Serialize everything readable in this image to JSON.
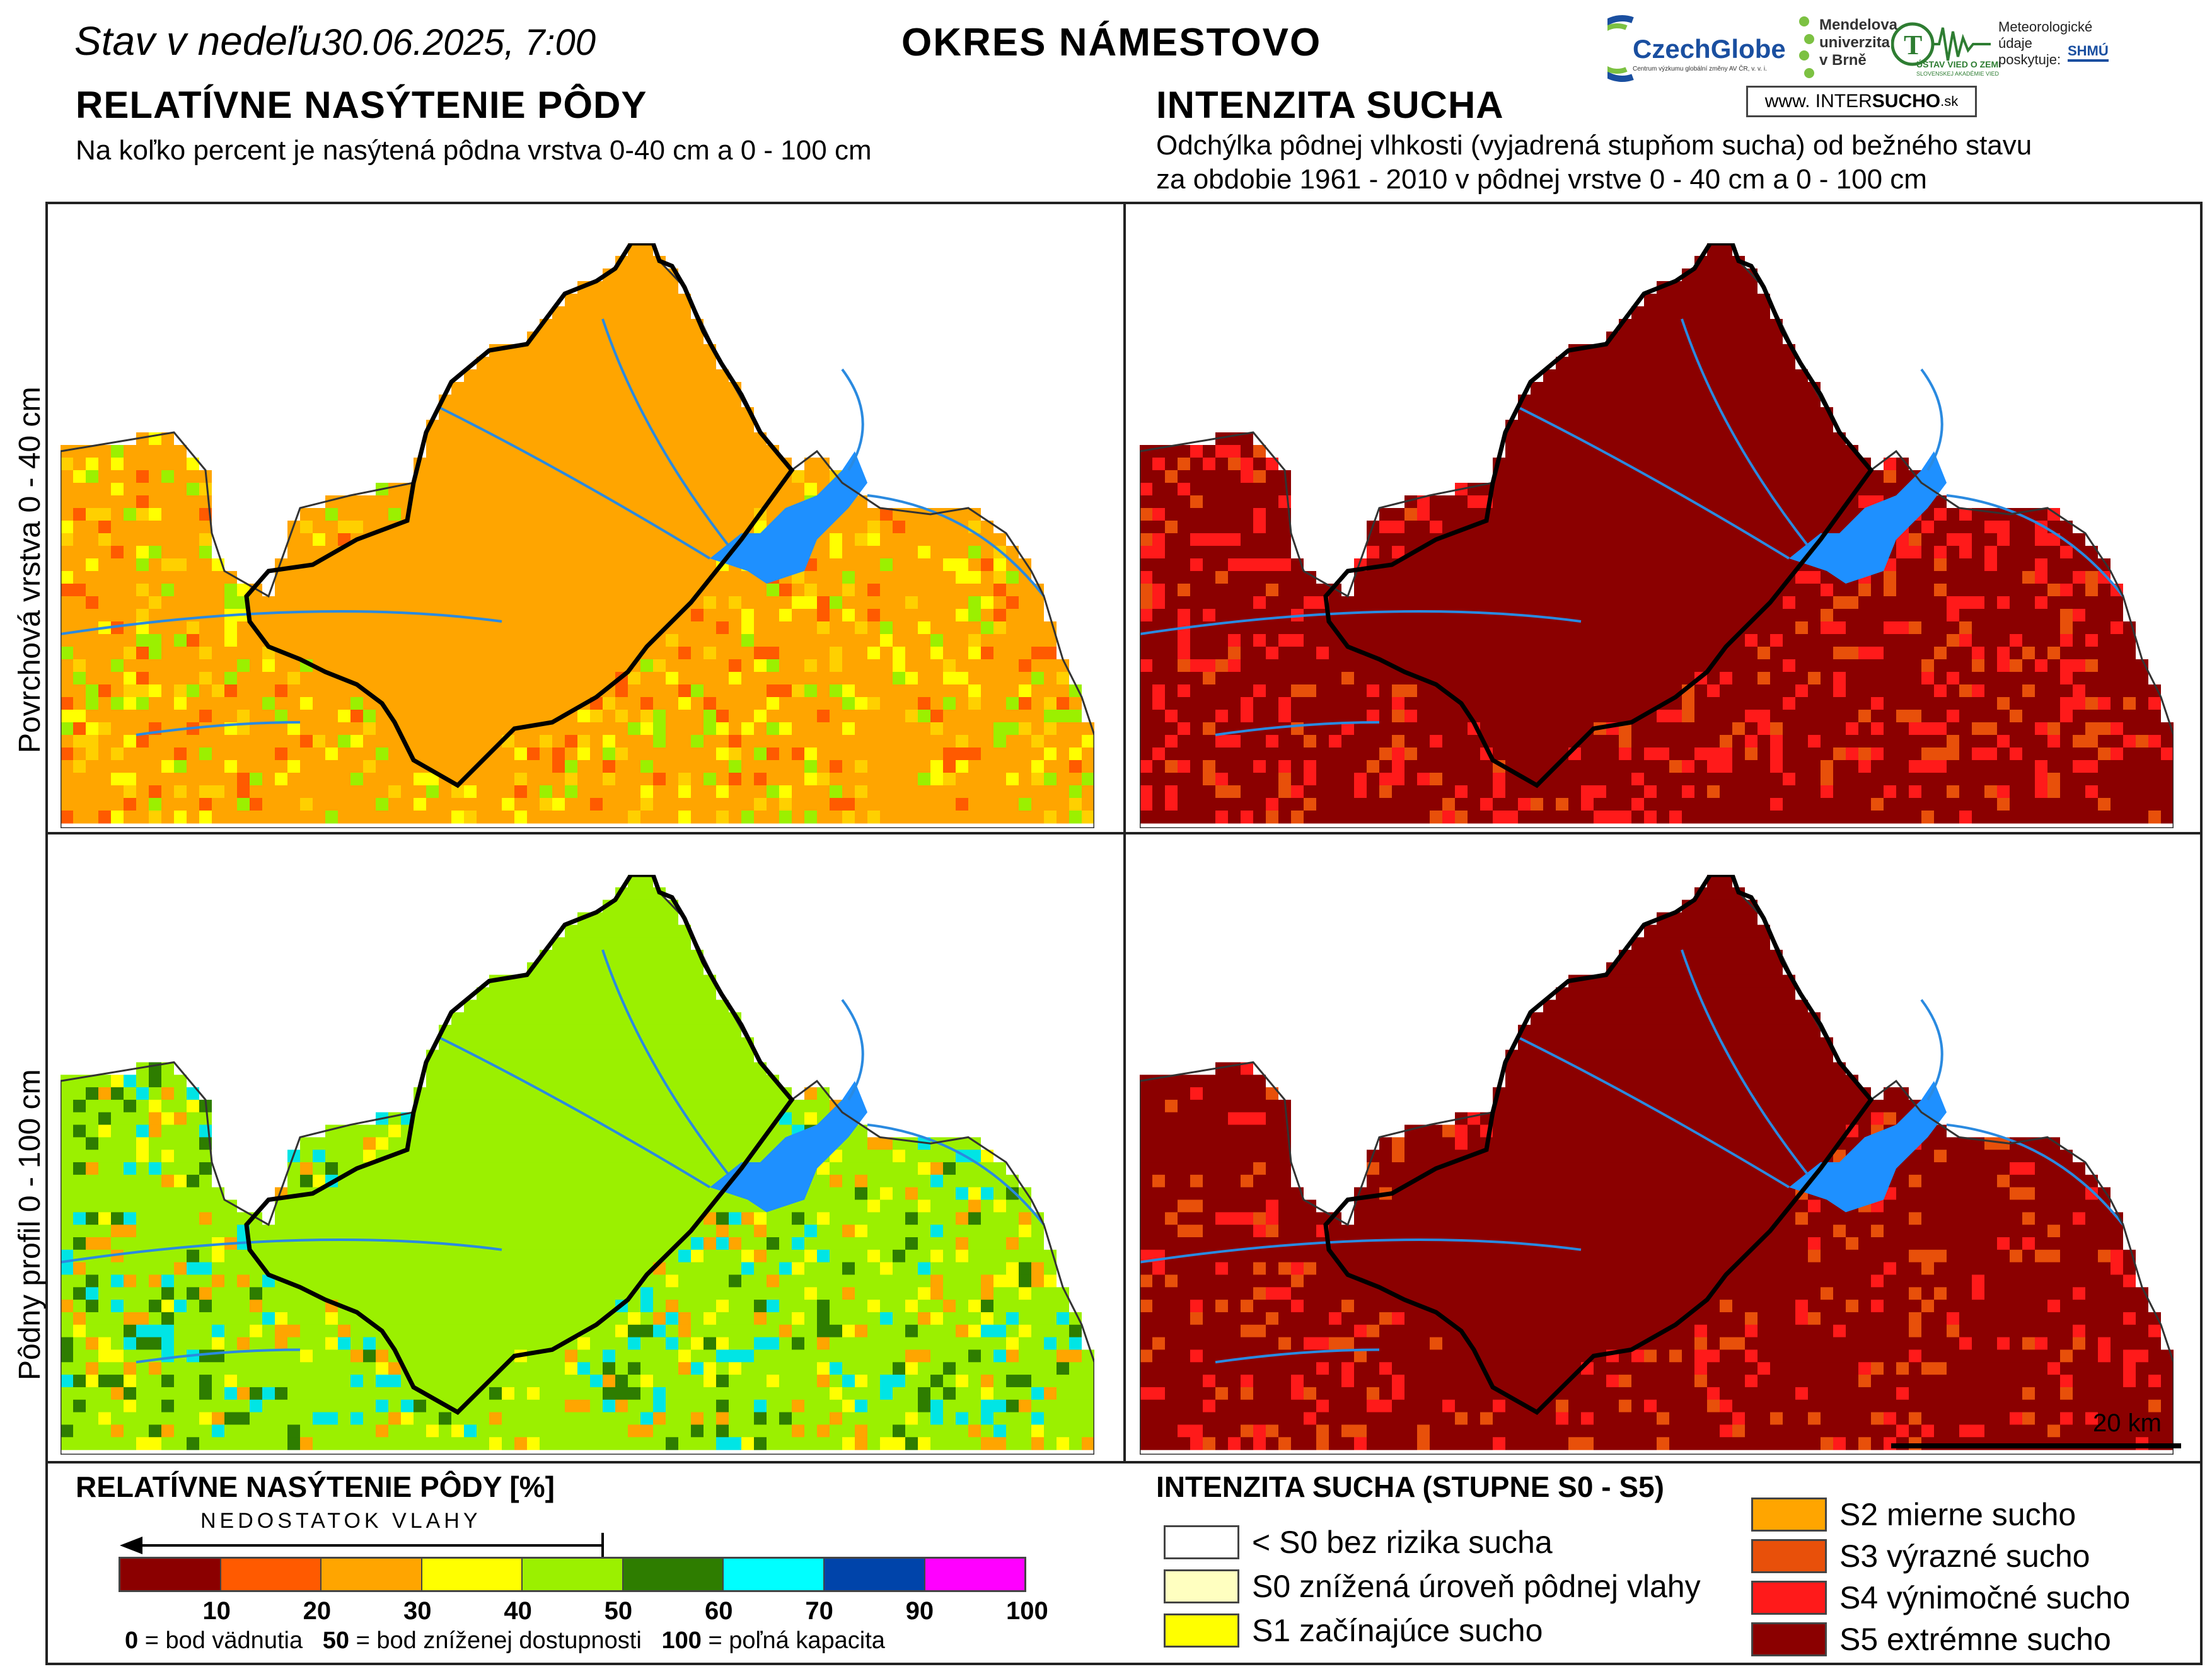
{
  "header": {
    "date_prefix": "Stav v nedeľu",
    "date": "30.06.2025, 7:00",
    "district": "OKRES NÁMESTOVO"
  },
  "logos": {
    "czechglobe": "CzechGlobe",
    "czechglobe_sub": "Centrum výzkumu globální změny AV ČR, v. v. i.",
    "mendel_l1": "Mendelova",
    "mendel_l2": "univerzita",
    "mendel_l3": "v Brně",
    "usvz": "ÚSTAV VIED O ZEMI",
    "usvz_sub": "SLOVENSKEJ AKADÉMIE VIED",
    "meteo_l1": "Meteorologické",
    "meteo_l2": "údaje",
    "meteo_l3": "poskytuje:",
    "shmu": "SHMÚ",
    "intersucho_www": "www.",
    "intersucho_a": "INTER",
    "intersucho_b": "SUCHO",
    "intersucho_sk": ".sk"
  },
  "left_section": {
    "title": "RELATÍVNE NASÝTENIE PÔDY",
    "subtitle": "Na koľko percent je nasýtená pôdna vrstva 0-40 cm a 0 - 100 cm"
  },
  "right_section": {
    "title": "INTENZITA SUCHA",
    "subtitle_l1": "Odchýlka pôdnej vlhkosti (vyjadrená stupňom sucha) od bežného stavu",
    "subtitle_l2": "za obdobie 1961 - 2010 v pôdnej vrstve 0 - 40 cm a 0 - 100 cm"
  },
  "row_labels": {
    "top": "Povrchová vrstva 0 - 40 cm",
    "bottom": "Pôdny profil 0 - 100 cm"
  },
  "scale_bar": {
    "label": "20 km"
  },
  "legend_left": {
    "title": "RELATÍVNE NASÝTENIE PÔDY [%]",
    "arrow_label": "NEDOSTATOK VLAHY",
    "bins": [
      {
        "color": "#8b0000"
      },
      {
        "color": "#ff5a00"
      },
      {
        "color": "#ffa500"
      },
      {
        "color": "#ffff00"
      },
      {
        "color": "#9bf000"
      },
      {
        "color": "#2e7d00"
      },
      {
        "color": "#00ffff"
      },
      {
        "color": "#0044aa"
      },
      {
        "color": "#ff00ff"
      }
    ],
    "ticks": [
      "10",
      "20",
      "30",
      "40",
      "50",
      "60",
      "70",
      "90",
      "100"
    ],
    "note_0": "0",
    "note_0_text": "= bod vädnutia",
    "note_50": "50",
    "note_50_text": "= bod zníženej dostupnosti",
    "note_100": "100",
    "note_100_text": "= poľná kapacita"
  },
  "legend_right": {
    "title": "INTENZITA SUCHA (STUPNE S0 - S5)",
    "items": [
      {
        "label": "< S0 bez rizika sucha",
        "color": "#ffffff"
      },
      {
        "label": "S0 znížená úroveň pôdnej vlahy",
        "color": "#ffffc0"
      },
      {
        "label": "S1 začínajúce sucho",
        "color": "#ffff00"
      },
      {
        "label": "S2 mierne sucho",
        "color": "#ffa500"
      },
      {
        "label": "S3 výrazné sucho",
        "color": "#e8500a"
      },
      {
        "label": "S4 výnimočné sucho",
        "color": "#ff1a1a"
      },
      {
        "label": "S5 extrémne sucho",
        "color": "#8b0000"
      }
    ]
  },
  "map_layers": {
    "soil_top": [
      "#ffa500",
      "#ffa500",
      "#ffd000",
      "#ffff00",
      "#9bf000",
      "#ff5a00"
    ],
    "soil_bottom": [
      "#9bf000",
      "#9bf000",
      "#ffff00",
      "#2e7d00",
      "#00e5e5",
      "#ffa500"
    ],
    "drought_top": [
      "#8b0000",
      "#8b0000",
      "#ff1a1a",
      "#ff1a1a",
      "#e8500a"
    ],
    "drought_bottom": [
      "#8b0000",
      "#8b0000",
      "#8b0000",
      "#ff1a1a",
      "#e8500a"
    ]
  }
}
